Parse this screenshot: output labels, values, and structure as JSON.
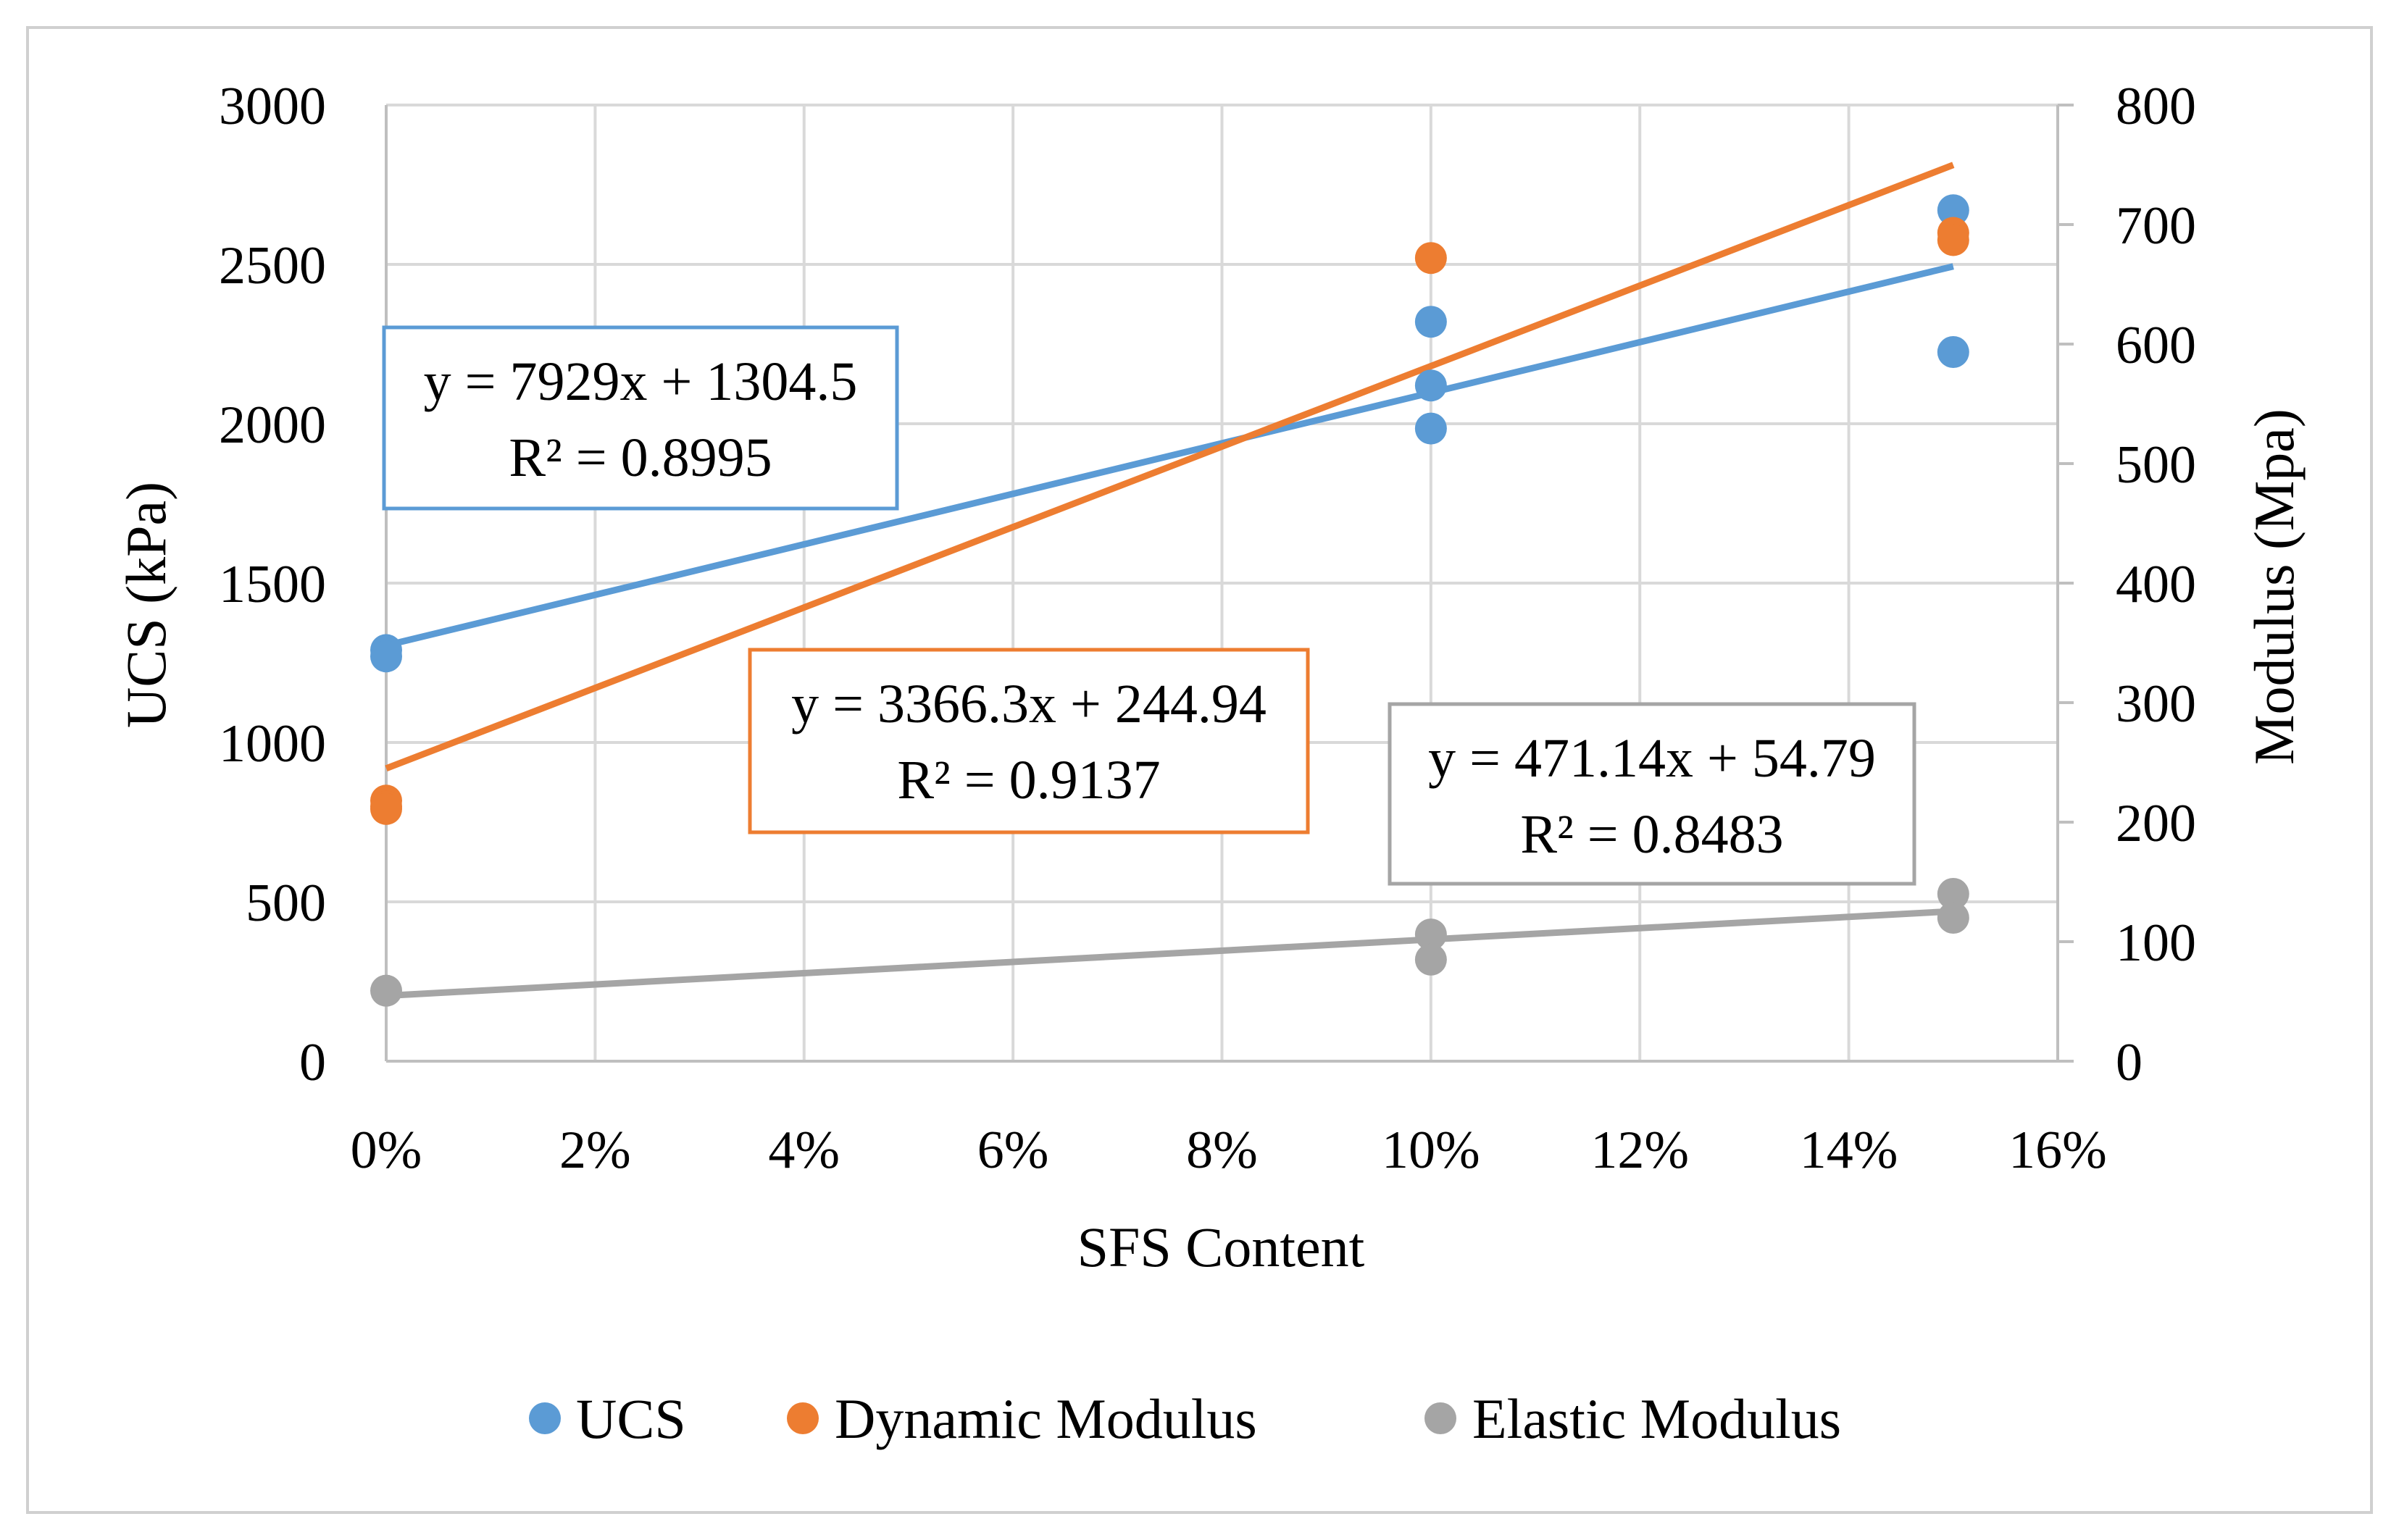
{
  "chart_data": {
    "type": "scatter",
    "title": "",
    "xlabel": "SFS Content",
    "ylabel_left": "UCS (kPa)",
    "ylabel_right": "Modulus (Mpa)",
    "xlim": [
      0,
      0.16
    ],
    "ylim_left": [
      0,
      3000
    ],
    "ylim_right": [
      0,
      800
    ],
    "x_ticks": [
      "0%",
      "2%",
      "4%",
      "6%",
      "8%",
      "10%",
      "12%",
      "14%",
      "16%"
    ],
    "x_tick_values": [
      0,
      0.02,
      0.04,
      0.06,
      0.08,
      0.1,
      0.12,
      0.14,
      0.16
    ],
    "y_left_ticks": [
      "0",
      "500",
      "1000",
      "1500",
      "2000",
      "2500",
      "3000"
    ],
    "y_left_tick_values": [
      0,
      500,
      1000,
      1500,
      2000,
      2500,
      3000
    ],
    "y_right_ticks": [
      "0",
      "100",
      "200",
      "300",
      "400",
      "500",
      "600",
      "700",
      "800"
    ],
    "y_right_tick_values": [
      0,
      100,
      200,
      300,
      400,
      500,
      600,
      700,
      800
    ],
    "grid": true,
    "legend_position": "bottom",
    "series": [
      {
        "name": "UCS",
        "axis": "left",
        "color": "#5b9bd5",
        "points": [
          [
            0,
            1290
          ],
          [
            0,
            1270
          ],
          [
            0.1,
            2320
          ],
          [
            0.1,
            2120
          ],
          [
            0.1,
            1985
          ],
          [
            0.15,
            2670
          ],
          [
            0.15,
            2225
          ]
        ],
        "trendline": {
          "slope": 7929,
          "intercept": 1304.5,
          "x_range": [
            0,
            0.15
          ]
        },
        "equation": "y = 7929x + 1304.5",
        "r2": "R² = 0.8995"
      },
      {
        "name": "Dynamic Modulus",
        "axis": "right",
        "color": "#ed7d31",
        "points": [
          [
            0,
            218
          ],
          [
            0,
            213
          ],
          [
            0,
            211
          ],
          [
            0.1,
            672
          ],
          [
            0.15,
            693
          ],
          [
            0.15,
            687
          ]
        ],
        "trendline": {
          "slope": 3366.3,
          "intercept": 244.94,
          "x_range": [
            0,
            0.15
          ]
        },
        "equation": "y = 3366.3x + 244.94",
        "r2": "R² = 0.9137"
      },
      {
        "name": "Elastic Modulus",
        "axis": "right",
        "color": "#a5a5a5",
        "points": [
          [
            0,
            59
          ],
          [
            0.1,
            106
          ],
          [
            0.1,
            85
          ],
          [
            0.15,
            140
          ],
          [
            0.15,
            120
          ]
        ],
        "trendline": {
          "slope": 471.14,
          "intercept": 54.79,
          "x_range": [
            0,
            0.15
          ]
        },
        "equation": "y = 471.14x + 54.79",
        "r2": "R² = 0.8483"
      }
    ]
  }
}
